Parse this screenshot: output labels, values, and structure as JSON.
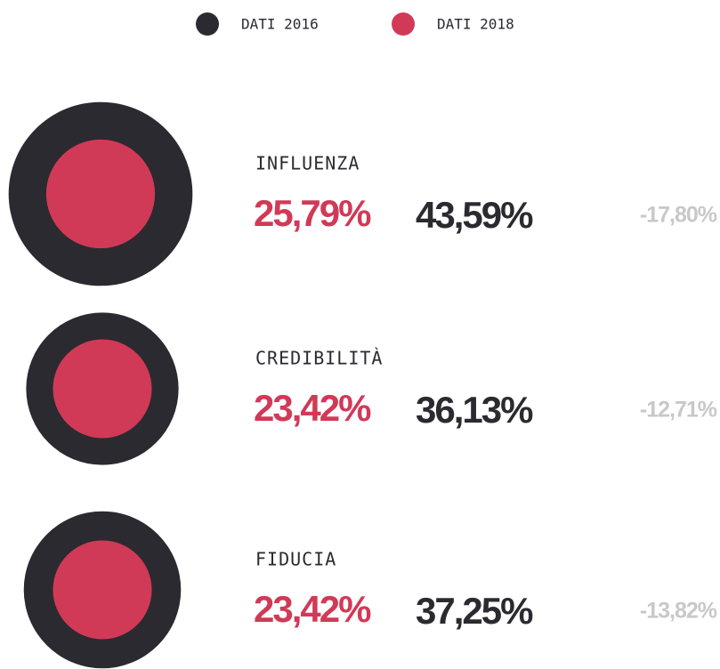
{
  "chart_data": {
    "type": "nested-circle",
    "categories": [
      "INFLUENZA",
      "CREDIBILITÀ",
      "FIDUCIA"
    ],
    "series": [
      {
        "name": "DATI 2016",
        "color": "#2b2a30",
        "values": [
          43.59,
          36.13,
          37.25
        ],
        "value_labels": [
          "43,59%",
          "36,13%",
          "37,25%"
        ]
      },
      {
        "name": "DATI 2018",
        "color": "#d13a57",
        "values": [
          25.79,
          23.42,
          23.42
        ],
        "value_labels": [
          "25,79%",
          "23,42%",
          "23,42%"
        ]
      }
    ],
    "differences": [
      -17.8,
      -12.71,
      -13.82
    ],
    "difference_labels": [
      "-17,80%",
      "-12,71%",
      "-13,82%"
    ]
  }
}
